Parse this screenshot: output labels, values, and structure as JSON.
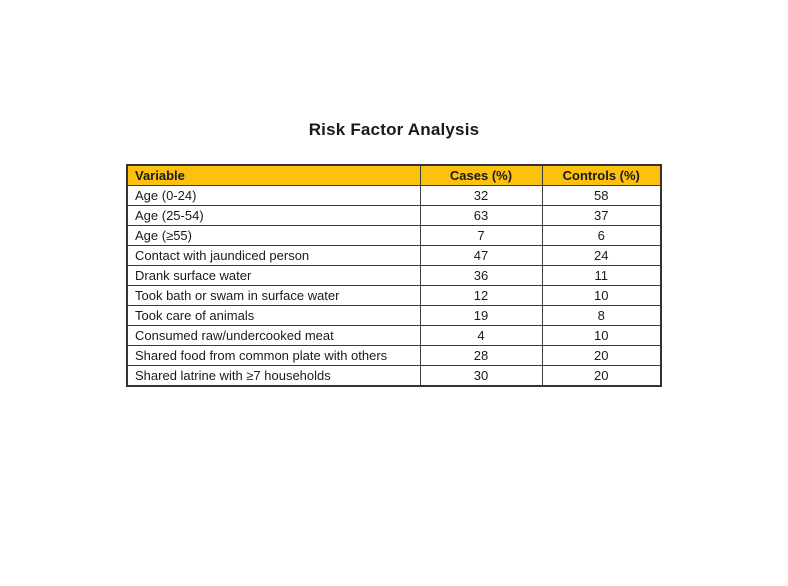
{
  "title": "Risk Factor Analysis",
  "colors": {
    "page_bg": "#FFFFFF",
    "header_bg": "#FCC00E",
    "border": "#3C3C3C",
    "text": "#1A1A1A"
  },
  "table": {
    "columns": [
      "Variable",
      "Cases (%)",
      "Controls (%)"
    ],
    "rows": [
      [
        "Age (0-24)",
        "32",
        "58"
      ],
      [
        "Age (25-54)",
        "63",
        "37"
      ],
      [
        "Age (≥55)",
        "7",
        "6"
      ],
      [
        "Contact with jaundiced person",
        "47",
        "24"
      ],
      [
        "Drank surface water",
        "36",
        "11"
      ],
      [
        "Took bath or swam in surface water",
        "12",
        "10"
      ],
      [
        "Took care of animals",
        "19",
        "8"
      ],
      [
        "Consumed raw/undercooked meat",
        "4",
        "10"
      ],
      [
        "Shared food from common plate with others",
        "28",
        "20"
      ],
      [
        "Shared latrine with ≥7 households",
        "30",
        "20"
      ]
    ]
  },
  "chart_data": {
    "type": "table",
    "title": "Risk Factor Analysis",
    "columns": [
      "Variable",
      "Cases (%)",
      "Controls (%)"
    ],
    "categories": [
      "Age (0-24)",
      "Age (25-54)",
      "Age (≥55)",
      "Contact with jaundiced person",
      "Drank surface water",
      "Took bath or swam in surface water",
      "Took care of animals",
      "Consumed raw/undercooked meat",
      "Shared food from common plate with others",
      "Shared latrine with ≥7 households"
    ],
    "series": [
      {
        "name": "Cases (%)",
        "values": [
          32,
          63,
          7,
          47,
          36,
          12,
          19,
          4,
          28,
          30
        ]
      },
      {
        "name": "Controls (%)",
        "values": [
          58,
          37,
          6,
          24,
          11,
          10,
          8,
          10,
          20,
          20
        ]
      }
    ],
    "layout": {
      "header_background": "#FCC00E",
      "grid": true,
      "legend_position": "none"
    }
  }
}
